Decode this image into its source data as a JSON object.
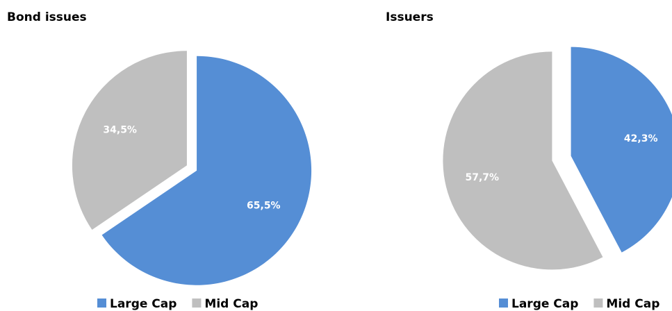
{
  "chart_data": [
    {
      "type": "pie",
      "title": "Bond issues",
      "categories": [
        "Large Cap",
        "Mid Cap"
      ],
      "values": [
        65.5,
        34.5
      ],
      "value_labels": [
        "65,5%",
        "34,5%"
      ],
      "colors": [
        "#558ed5",
        "#bfbfbf"
      ]
    },
    {
      "type": "pie",
      "title": "Issuers",
      "categories": [
        "Large Cap",
        "Mid Cap"
      ],
      "values": [
        42.3,
        57.7
      ],
      "value_labels": [
        "42,3%",
        "57,7%"
      ],
      "colors": [
        "#558ed5",
        "#bfbfbf"
      ]
    }
  ]
}
